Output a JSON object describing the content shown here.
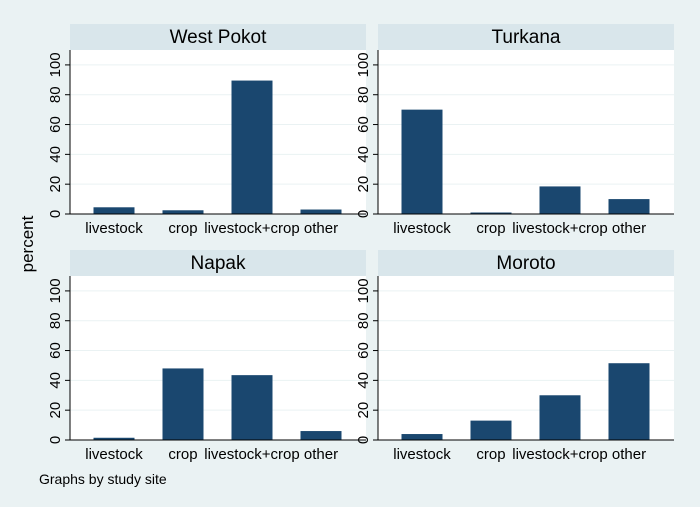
{
  "chart_data": {
    "type": "bar",
    "ylabel": "percent",
    "note": "Graphs by study site",
    "ylim": [
      0,
      100
    ],
    "yticks": [
      0,
      20,
      40,
      60,
      80,
      100
    ],
    "categories": [
      "livestock",
      "crop",
      "livestock+crop",
      "other"
    ],
    "bar_color": "#1a476f",
    "panels": [
      {
        "title": "West Pokot",
        "values": [
          4.5,
          2.5,
          89.5,
          3
        ]
      },
      {
        "title": "Turkana",
        "values": [
          70,
          1,
          18.5,
          10
        ]
      },
      {
        "title": "Napak",
        "values": [
          1.5,
          48,
          43.5,
          6
        ]
      },
      {
        "title": "Moroto",
        "values": [
          4,
          13,
          30,
          51.5
        ]
      }
    ]
  }
}
